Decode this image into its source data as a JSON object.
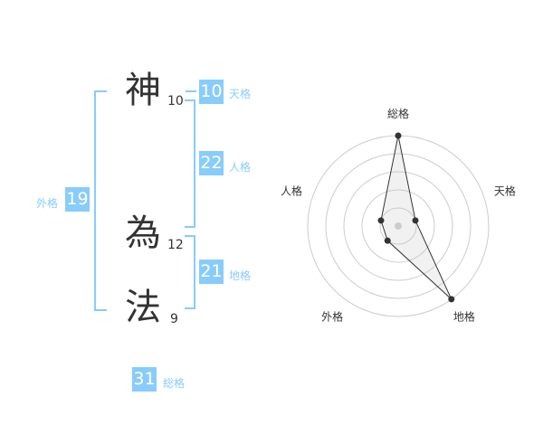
{
  "characters": [
    {
      "char": "神",
      "strokes": "10"
    },
    {
      "char": "為",
      "strokes": "12"
    },
    {
      "char": "法",
      "strokes": "9"
    }
  ],
  "fortunes": {
    "tenkaku": {
      "label": "天格",
      "value": "10"
    },
    "jinkaku": {
      "label": "人格",
      "value": "22"
    },
    "chikaku": {
      "label": "地格",
      "value": "21"
    },
    "gaikaku": {
      "label": "外格",
      "value": "19"
    },
    "soukaku": {
      "label": "総格",
      "value": "31"
    }
  },
  "colors": {
    "accent": "#88ccfb",
    "text": "#333333"
  },
  "chart_data": {
    "type": "radar",
    "axes": [
      "総格",
      "天格",
      "地格",
      "外格",
      "人格"
    ],
    "values": [
      5,
      1,
      5,
      1,
      1
    ],
    "range": [
      0,
      5
    ],
    "rings": 5
  }
}
